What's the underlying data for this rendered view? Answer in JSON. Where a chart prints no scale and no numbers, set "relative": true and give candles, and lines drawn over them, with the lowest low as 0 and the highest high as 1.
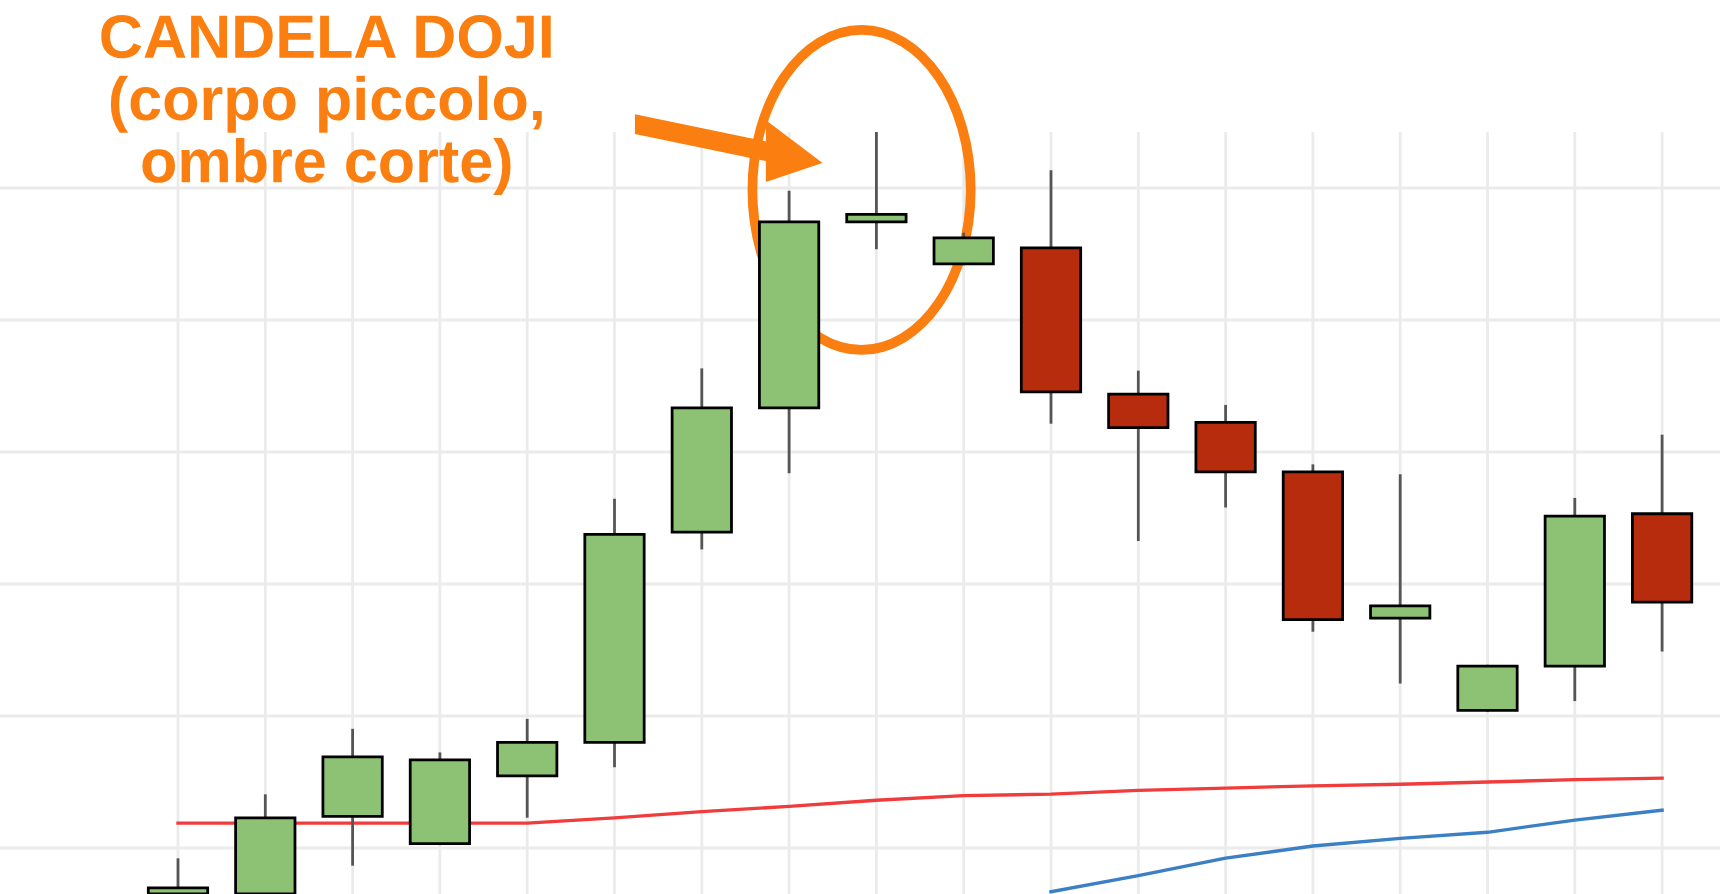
{
  "chart_data": {
    "type": "candlestick",
    "relative": true,
    "grid": true,
    "categories": [
      null,
      null,
      null,
      null,
      null,
      null,
      null,
      null,
      null,
      null,
      null,
      null,
      null,
      null,
      null,
      null,
      null,
      null
    ],
    "ohlc": [
      [
        0,
        0.045,
        0,
        0.008
      ],
      [
        0,
        0.129,
        0,
        0.1
      ],
      [
        0.102,
        0.215,
        0.039,
        0.18
      ],
      [
        0.066,
        0.184,
        0.066,
        0.176
      ],
      [
        0.155,
        0.228,
        0.102,
        0.199
      ],
      [
        0.199,
        0.517,
        0.168,
        0.472
      ],
      [
        0.475,
        0.688,
        0.454,
        0.638
      ],
      [
        0.638,
        0.921,
        0.554,
        0.882
      ],
      [
        0.882,
        1,
        0.848,
        0.892
      ],
      [
        0.827,
        0.866,
        0.827,
        0.861
      ],
      [
        0.848,
        0.948,
        0.619,
        0.659
      ],
      [
        0.656,
        0.685,
        0.465,
        0.612
      ],
      [
        0.619,
        0.64,
        0.509,
        0.554
      ],
      [
        0.554,
        0.562,
        0.346,
        0.36
      ],
      [
        0.362,
        0.549,
        0.278,
        0.378
      ],
      [
        0.241,
        0.299,
        0.241,
        0.299
      ],
      [
        0.299,
        0.518,
        0.255,
        0.496
      ],
      [
        0.499,
        0.601,
        0.32,
        0.383
      ]
    ],
    "colors": [
      "#8dc275",
      "#8dc275",
      "#8dc275",
      "#8dc275",
      "#8dc275",
      "#8dc275",
      "#8dc275",
      "#8dc275",
      "#8dc275",
      "#8dc275",
      "#b82c0e",
      "#b82c0e",
      "#b82c0e",
      "#b82c0e",
      "#8dc275",
      "#8dc275",
      "#8dc275",
      "#b82c0e"
    ],
    "series": [
      {
        "type": "line",
        "color": "#f03c3c",
        "values": [
          0.093,
          null,
          0.093,
          null,
          0.093,
          0.1,
          0.108,
          0.115,
          0.123,
          0.129,
          0.131,
          0.136,
          0.139,
          0.142,
          0.144,
          0.147,
          0.15,
          0.152
        ]
      },
      {
        "type": "line",
        "color": "#3b7fc4",
        "values": [
          null,
          null,
          null,
          null,
          null,
          null,
          null,
          null,
          null,
          null,
          0.003,
          0.024,
          0.047,
          0.063,
          0.073,
          0.081,
          0.097,
          0.11
        ]
      }
    ],
    "annotations": [
      "CANDELA DOJI\n(corpo piccolo,\nombre corte)"
    ]
  }
}
